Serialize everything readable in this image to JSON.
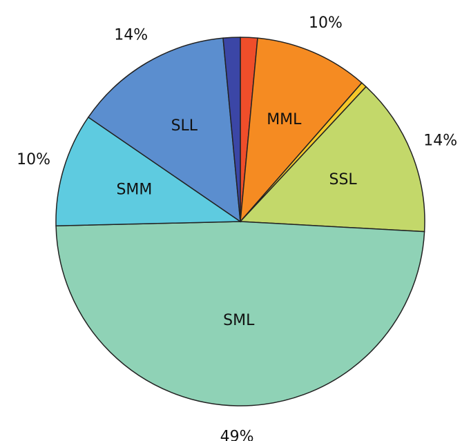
{
  "chart_data": {
    "type": "pie",
    "categories": [
      null,
      "MML",
      null,
      "SSL",
      "SML",
      "SMM",
      "SLL",
      null
    ],
    "values": [
      1.5,
      10,
      0.5,
      14,
      49,
      10,
      14,
      1.5
    ],
    "value_labels": [
      null,
      "10%",
      null,
      "14%",
      "49%",
      "10%",
      "14%",
      null
    ],
    "colors": [
      "#ef4e2a",
      "#f58b22",
      "#f5c829",
      "#c3d86a",
      "#8fd2b6",
      "#5ecbe0",
      "#5b8ecf",
      "#3b46a6"
    ],
    "start_angle": 0,
    "direction": "clockwise"
  }
}
